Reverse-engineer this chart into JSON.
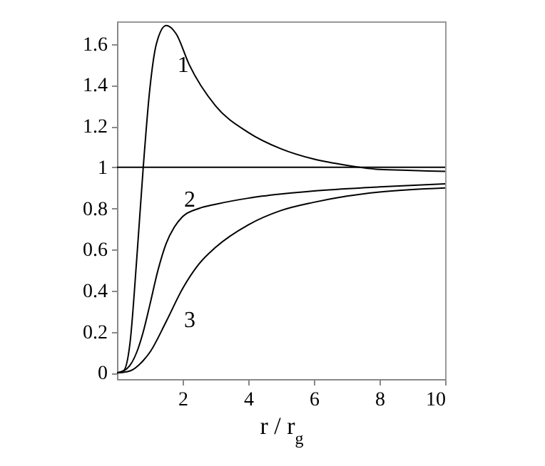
{
  "chart_data": {
    "type": "line",
    "xlabel": "r / r$_{g}$",
    "xlim": [
      0,
      10
    ],
    "xticks": [
      2,
      4,
      6,
      8,
      10
    ],
    "ylim": [
      -0.03,
      1.71
    ],
    "yticks": [
      0,
      0.2,
      0.4,
      0.6,
      0.8,
      1,
      1.2,
      1.4,
      1.6
    ],
    "series": [
      {
        "name": "1",
        "color": "#000000",
        "x": [
          0,
          0.2,
          0.4,
          0.6,
          0.8,
          1.0,
          1.2,
          1.5,
          1.8,
          2.2,
          3,
          4,
          5,
          6,
          7,
          8,
          9,
          10
        ],
        "values": [
          0,
          0.01,
          0.15,
          0.55,
          1.0,
          1.38,
          1.6,
          1.69,
          1.65,
          1.5,
          1.3,
          1.17,
          1.09,
          1.04,
          1.01,
          0.99,
          0.985,
          0.98
        ]
      },
      {
        "name": "2",
        "color": "#000000",
        "x": [
          0,
          0.3,
          0.6,
          0.8,
          1,
          1.25,
          1.5,
          1.75,
          2,
          2.5,
          3,
          4,
          5,
          6,
          8,
          10
        ],
        "values": [
          0,
          0.02,
          0.1,
          0.2,
          0.33,
          0.5,
          0.63,
          0.71,
          0.76,
          0.8,
          0.82,
          0.85,
          0.87,
          0.885,
          0.905,
          0.92
        ]
      },
      {
        "name": "3",
        "color": "#000000",
        "x": [
          0,
          0.4,
          0.8,
          1,
          1.5,
          2,
          2.5,
          3,
          4,
          5,
          6,
          7,
          8,
          10
        ],
        "values": [
          0,
          0.01,
          0.06,
          0.1,
          0.25,
          0.41,
          0.53,
          0.61,
          0.72,
          0.79,
          0.83,
          0.86,
          0.88,
          0.9
        ]
      }
    ],
    "ref_lines": [
      {
        "axis": "y",
        "value": 1,
        "color": "#000000"
      }
    ]
  }
}
